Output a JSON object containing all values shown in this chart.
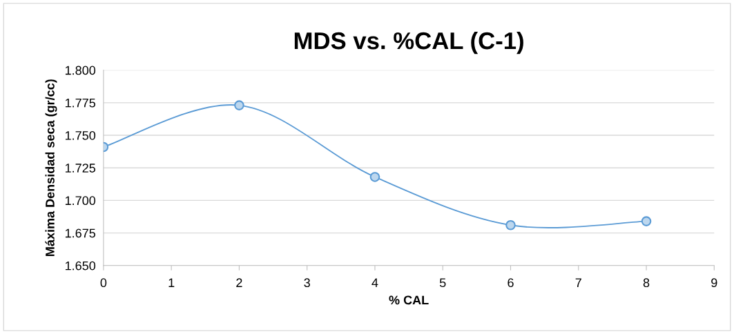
{
  "chart_data": {
    "type": "line",
    "title": "MDS vs. %CAL (C-1)",
    "xlabel": "% CAL",
    "ylabel": "Máxima Densidad seca (gr/cc)",
    "x": [
      0,
      2,
      4,
      6,
      8
    ],
    "series": [
      {
        "color": "#5b9bd5",
        "values": [
          1.741,
          1.773,
          1.718,
          1.681,
          1.684
        ]
      }
    ],
    "xlim": [
      0,
      9
    ],
    "xticks": [
      0,
      1,
      2,
      3,
      4,
      5,
      6,
      7,
      8,
      9
    ],
    "ylim": [
      1.65,
      1.8
    ],
    "yticks": [
      {
        "value": 1.65,
        "label": "1.650"
      },
      {
        "value": 1.675,
        "label": "1.675"
      },
      {
        "value": 1.7,
        "label": "1.700"
      },
      {
        "value": 1.725,
        "label": "1.725"
      },
      {
        "value": 1.75,
        "label": "1.750"
      },
      {
        "value": 1.775,
        "label": "1.775"
      },
      {
        "value": 1.8,
        "label": "1.800"
      }
    ],
    "grid": "y",
    "marker": "circle",
    "line_style": "solid"
  }
}
